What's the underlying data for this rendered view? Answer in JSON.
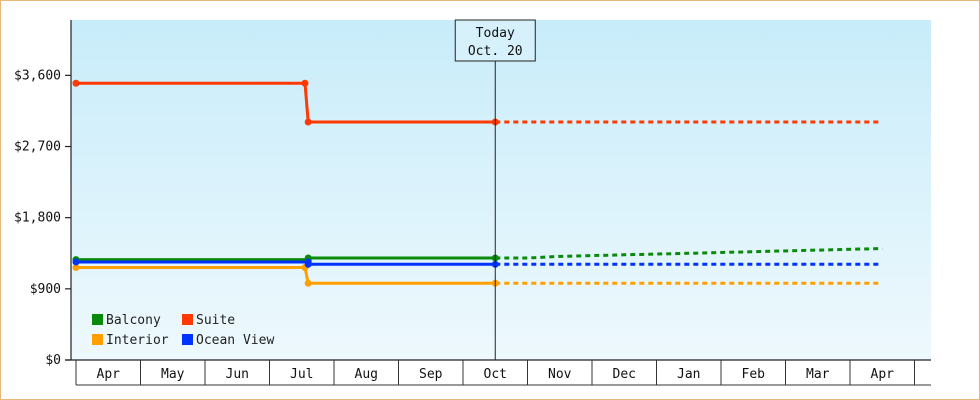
{
  "chart_data": {
    "type": "line",
    "style": "step",
    "title": "",
    "xlabel": "",
    "ylabel": "",
    "ylim": [
      0,
      4300
    ],
    "y_ticks": [
      0,
      900,
      1800,
      2700,
      3600
    ],
    "y_tick_labels": [
      "$0",
      "$900",
      "$1,800",
      "$2,700",
      "$3,600"
    ],
    "x_range_months": [
      "Apr",
      "May",
      "Jun",
      "Jul",
      "Aug",
      "Sep",
      "Oct",
      "Nov",
      "Dec",
      "Jan",
      "Feb",
      "Mar",
      "Apr"
    ],
    "grid": false,
    "legend_position": "bottom-left",
    "today": {
      "label": "Today",
      "date_label": "Oct. 20",
      "month_index": 6.5
    },
    "series": [
      {
        "name": "Balcony",
        "color": "#0a8a0a",
        "points": [
          [
            0,
            1270
          ],
          [
            3.6,
            1270
          ],
          [
            3.6,
            1290
          ],
          [
            6.5,
            1290
          ]
        ],
        "projected": [
          [
            6.5,
            1290
          ],
          [
            7,
            1290
          ],
          [
            7.5,
            1310
          ],
          [
            8.5,
            1330
          ],
          [
            9.5,
            1350
          ],
          [
            10.5,
            1370
          ],
          [
            11.5,
            1390
          ],
          [
            12.5,
            1410
          ]
        ]
      },
      {
        "name": "Suite",
        "color": "#ff3a00",
        "points": [
          [
            0,
            3500
          ],
          [
            3.55,
            3500
          ],
          [
            3.6,
            3010
          ],
          [
            6.5,
            3010
          ]
        ],
        "projected": [
          [
            6.5,
            3010
          ],
          [
            12.5,
            3010
          ]
        ]
      },
      {
        "name": "Interior",
        "color": "#ffa000",
        "points": [
          [
            0,
            1170
          ],
          [
            3.55,
            1170
          ],
          [
            3.6,
            970
          ],
          [
            6.5,
            970
          ]
        ],
        "projected": [
          [
            6.5,
            970
          ],
          [
            12.5,
            970
          ]
        ]
      },
      {
        "name": "Ocean View",
        "color": "#0033ff",
        "points": [
          [
            0,
            1240
          ],
          [
            3.6,
            1240
          ],
          [
            3.6,
            1210
          ],
          [
            6.5,
            1210
          ]
        ],
        "projected": [
          [
            6.5,
            1210
          ],
          [
            12.5,
            1210
          ]
        ]
      }
    ]
  }
}
